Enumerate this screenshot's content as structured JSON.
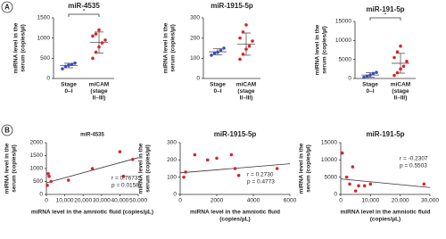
{
  "panels": [
    "A",
    "B"
  ],
  "chart_data": [
    {
      "type": "strip",
      "title": "miR-4535",
      "ylabel": [
        "miRNA level in the",
        "serum (copies/µl)"
      ],
      "categories": [
        [
          "Stage",
          "0–I"
        ],
        [
          "miCAM",
          "(stage",
          "II–III)"
        ]
      ],
      "groups": [
        {
          "color": "#3b4fb8",
          "values": [
            240,
            300,
            330,
            350,
            380
          ],
          "mean": 320,
          "error": 55
        },
        {
          "color": "#d7262b",
          "values": [
            500,
            650,
            780,
            880,
            950,
            1050,
            1100,
            1200
          ],
          "mean": 890,
          "error": 260
        }
      ],
      "annotation": "*",
      "ylim": [
        0,
        1500
      ],
      "yticks": [
        0,
        500,
        1000,
        1500
      ]
    },
    {
      "type": "strip",
      "title": "miR-1915-5p",
      "ylabel": [
        "miRNA level in the",
        "serum (copies/µl)"
      ],
      "categories": [
        [
          "Stage",
          "0–I"
        ],
        [
          "miCAM",
          "(stage",
          "II–III)"
        ]
      ],
      "groups": [
        {
          "color": "#3b4fb8",
          "values": [
            115,
            125,
            130,
            140,
            150
          ],
          "mean": 132,
          "error": 15
        },
        {
          "color": "#d7262b",
          "values": [
            95,
            120,
            145,
            160,
            185,
            200,
            230,
            265
          ],
          "mean": 170,
          "error": 55
        }
      ],
      "ylim": [
        0,
        300
      ],
      "yticks": [
        0,
        100,
        200,
        300
      ]
    },
    {
      "type": "strip",
      "title": "miR-191-5p",
      "ylabel": [
        "miRNA level in the",
        "serum (copies/µl)"
      ],
      "categories": [
        [
          "Stage",
          "0–I"
        ],
        [
          "miCAM",
          "(stage",
          "II–III)"
        ]
      ],
      "groups": [
        {
          "color": "#3b4fb8",
          "values": [
            300,
            600,
            900,
            1300,
            1600
          ],
          "mean": 900,
          "error": 600
        },
        {
          "color": "#d7262b",
          "values": [
            800,
            1500,
            2500,
            3200,
            4500,
            5500,
            7000,
            8500
          ],
          "mean": 4000,
          "error": 2600
        }
      ],
      "annotation": "*",
      "ylim": [
        0,
        15000
      ],
      "yticks": [
        0,
        5000,
        10000,
        15000
      ]
    },
    {
      "type": "scatter",
      "title": "miR-4535",
      "ylabel": [
        "miRNA level in the",
        "serum (copies/µl)"
      ],
      "xlabel": [
        "miRNA level in the amniotic fluid (copies/µL)"
      ],
      "x": [
        500,
        1000,
        1500,
        2500,
        12000,
        25000,
        40000,
        42000,
        47000
      ],
      "values": [
        350,
        800,
        700,
        500,
        550,
        1000,
        1650,
        700,
        1350
      ],
      "color": "#d7262b",
      "fit": {
        "x": [
          0,
          50000
        ],
        "values": [
          450,
          1420
        ]
      },
      "stats": [
        "r = 0.7673",
        "p = 0.0158"
      ],
      "xlim": [
        0,
        50000
      ],
      "xticks": [
        0,
        {
          "value": 10000,
          "label": "10,000"
        },
        {
          "value": 20000,
          "label": "20,000"
        },
        {
          "value": 30000,
          "label": "30,000"
        },
        {
          "value": 40000,
          "label": "40,000"
        },
        {
          "value": 50000,
          "label": "50,000"
        }
      ],
      "ylim": [
        0,
        2000
      ],
      "yticks": [
        0,
        500,
        1000,
        1500,
        2000
      ]
    },
    {
      "type": "scatter",
      "title": "miR-1915-5p",
      "ylabel": [
        "miRNA level in the",
        "serum (copies/µl)"
      ],
      "xlabel": [
        "miRNA level in the amniotic fluid",
        "(copies/µL)"
      ],
      "x": [
        200,
        300,
        800,
        1500,
        2000,
        2800,
        3000,
        3200,
        5300
      ],
      "values": [
        100,
        130,
        230,
        200,
        210,
        230,
        150,
        110,
        150
      ],
      "color": "#d7262b",
      "fit": {
        "x": [
          0,
          6000
        ],
        "values": [
          125,
          178
        ]
      },
      "stats": [
        "r = 0.2730",
        "p = 0.4773"
      ],
      "xlim": [
        0,
        6000
      ],
      "xticks": [
        0,
        2000,
        4000,
        6000
      ],
      "ylim": [
        0,
        300
      ],
      "yticks": [
        0,
        100,
        200,
        300
      ]
    },
    {
      "type": "scatter",
      "title": "miR-191-5p",
      "ylabel": [
        "miRNA level in the",
        "serum (copies/µl)"
      ],
      "xlabel": [
        "miRNA level in the amniotic fluid",
        "(copies/µL)"
      ],
      "x": [
        500,
        2000,
        3000,
        4000,
        5000,
        6000,
        8000,
        10000,
        28000
      ],
      "values": [
        12000,
        5000,
        3000,
        8000,
        1000,
        2500,
        2500,
        3000,
        3000
      ],
      "color": "#d7262b",
      "fit": {
        "x": [
          0,
          30000
        ],
        "values": [
          4500,
          2000
        ]
      },
      "stats": [
        "r = -0.2307",
        "p = 0.5503"
      ],
      "xlim": [
        0,
        30000
      ],
      "xticks": [
        0,
        {
          "value": 10000,
          "label": "10,000"
        },
        {
          "value": 20000,
          "label": "20,000"
        },
        {
          "value": 30000,
          "label": "30,000"
        }
      ],
      "ylim": [
        0,
        15000
      ],
      "yticks": [
        0,
        5000,
        10000,
        15000
      ]
    }
  ]
}
